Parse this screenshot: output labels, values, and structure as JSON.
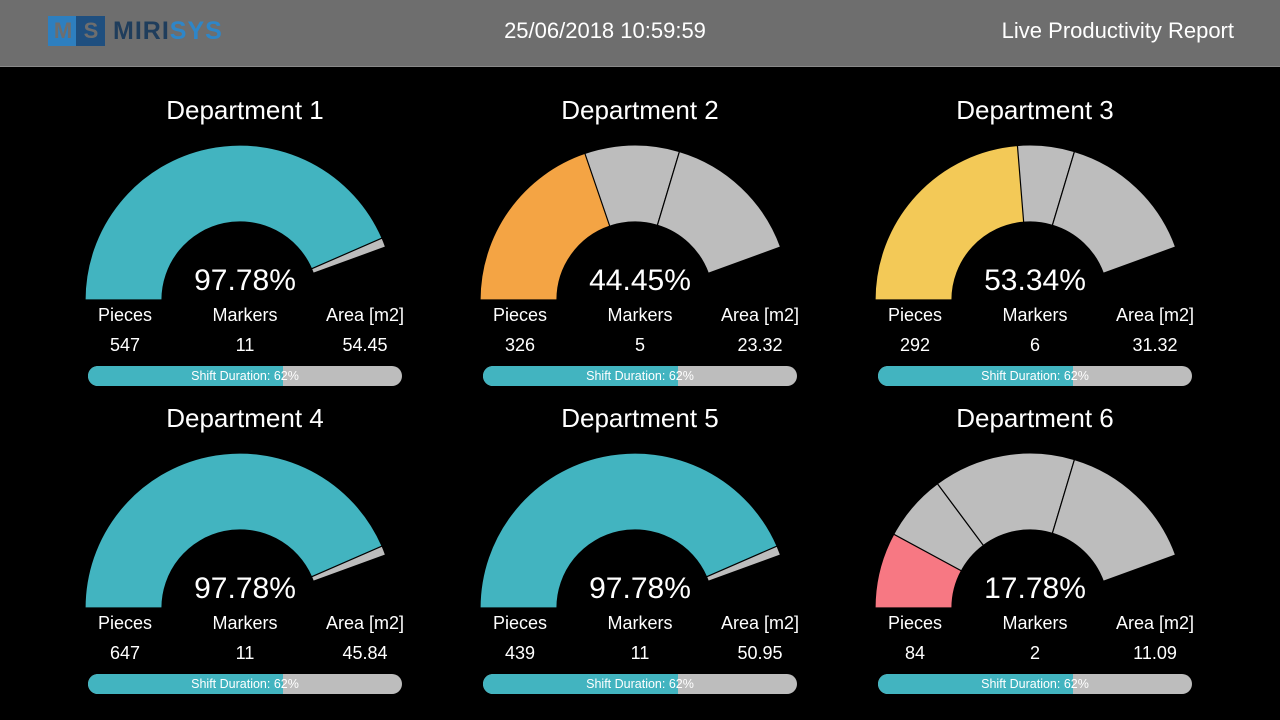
{
  "header": {
    "logo": {
      "mark": "MS",
      "text_a": "MIRI",
      "text_b": "SYS"
    },
    "datetime": "25/06/2018 10:59:59",
    "title": "Live Productivity Report"
  },
  "labels": {
    "pieces": "Pieces",
    "markers": "Markers",
    "area": "Area [m2]"
  },
  "colors": {
    "teal": "#42b4c0",
    "orange": "#f4a444",
    "yellow": "#f3c957",
    "red": "#f77883",
    "grey": "#bdbdbd",
    "background": "#000000",
    "header": "#6e6e6e"
  },
  "departments": [
    {
      "title": "Department 1",
      "percent_text": "97.78%",
      "percent": 97.78,
      "color": "#42b4c0",
      "pieces": "547",
      "markers": "11",
      "area": "54.45",
      "shift_text": "Shift Duration: 62%",
      "shift_fraction": 0.62
    },
    {
      "title": "Department 2",
      "percent_text": "44.45%",
      "percent": 44.45,
      "color": "#f4a444",
      "pieces": "326",
      "markers": "5",
      "area": "23.32",
      "shift_text": "Shift Duration: 62%",
      "shift_fraction": 0.62
    },
    {
      "title": "Department 3",
      "percent_text": "53.34%",
      "percent": 53.34,
      "color": "#f3c957",
      "pieces": "292",
      "markers": "6",
      "area": "31.32",
      "shift_text": "Shift Duration: 62%",
      "shift_fraction": 0.62
    },
    {
      "title": "Department 4",
      "percent_text": "97.78%",
      "percent": 97.78,
      "color": "#42b4c0",
      "pieces": "647",
      "markers": "11",
      "area": "45.84",
      "shift_text": "Shift Duration: 62%",
      "shift_fraction": 0.62
    },
    {
      "title": "Department 5",
      "percent_text": "97.78%",
      "percent": 97.78,
      "color": "#42b4c0",
      "pieces": "439",
      "markers": "11",
      "area": "50.95",
      "shift_text": "Shift Duration: 62%",
      "shift_fraction": 0.62
    },
    {
      "title": "Department 6",
      "percent_text": "17.78%",
      "percent": 17.78,
      "color": "#f77883",
      "pieces": "84",
      "markers": "2",
      "area": "11.09",
      "shift_text": "Shift Duration: 62%",
      "shift_fraction": 0.62
    }
  ]
}
